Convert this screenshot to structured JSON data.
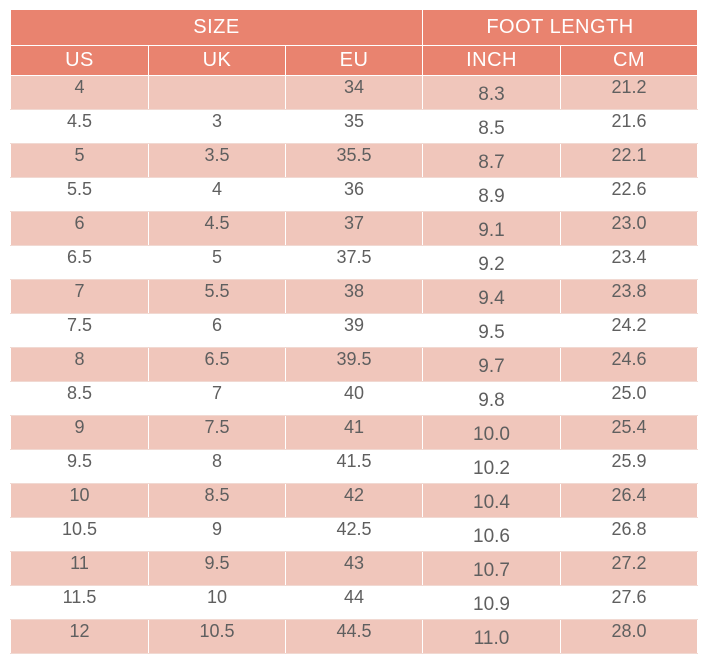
{
  "table": {
    "group_headers": {
      "size": "SIZE",
      "foot_length": "FOOT LENGTH"
    },
    "column_headers": [
      "US",
      "UK",
      "EU",
      "INCH",
      "CM"
    ],
    "rows": [
      [
        "4",
        "",
        "34",
        "8.3",
        "21.2"
      ],
      [
        "4.5",
        "3",
        "35",
        "8.5",
        "21.6"
      ],
      [
        "5",
        "3.5",
        "35.5",
        "8.7",
        "22.1"
      ],
      [
        "5.5",
        "4",
        "36",
        "8.9",
        "22.6"
      ],
      [
        "6",
        "4.5",
        "37",
        "9.1",
        "23.0"
      ],
      [
        "6.5",
        "5",
        "37.5",
        "9.2",
        "23.4"
      ],
      [
        "7",
        "5.5",
        "38",
        "9.4",
        "23.8"
      ],
      [
        "7.5",
        "6",
        "39",
        "9.5",
        "24.2"
      ],
      [
        "8",
        "6.5",
        "39.5",
        "9.7",
        "24.6"
      ],
      [
        "8.5",
        "7",
        "40",
        "9.8",
        "25.0"
      ],
      [
        "9",
        "7.5",
        "41",
        "10.0",
        "25.4"
      ],
      [
        "9.5",
        "8",
        "41.5",
        "10.2",
        "25.9"
      ],
      [
        "10",
        "8.5",
        "42",
        "10.4",
        "26.4"
      ],
      [
        "10.5",
        "9",
        "42.5",
        "10.6",
        "26.8"
      ],
      [
        "11",
        "9.5",
        "43",
        "10.7",
        "27.2"
      ],
      [
        "11.5",
        "10",
        "44",
        "10.9",
        "27.6"
      ],
      [
        "12",
        "10.5",
        "44.5",
        "11.0",
        "28.0"
      ]
    ]
  },
  "colors": {
    "header_bg": "#e9836f",
    "stripe_bg": "#f0c6bb",
    "text": "#5f5f5f"
  }
}
